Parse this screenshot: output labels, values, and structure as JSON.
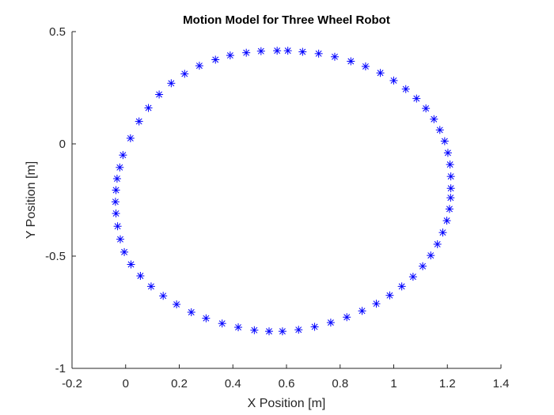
{
  "chart_data": {
    "type": "scatter",
    "title": "Motion Model for Three Wheel Robot",
    "xlabel": "X Position [m]",
    "ylabel": "Y Position [m]",
    "xlim": [
      -0.2,
      1.4
    ],
    "ylim": [
      -1,
      0.5
    ],
    "xticks": [
      -0.2,
      0,
      0.2,
      0.4,
      0.6,
      0.8,
      1,
      1.2,
      1.4
    ],
    "xtick_labels": [
      "-0.2",
      "0",
      "0.2",
      "0.4",
      "0.6",
      "0.8",
      "1",
      "1.2",
      "1.4"
    ],
    "yticks": [
      -1,
      -0.5,
      0,
      0.5
    ],
    "ytick_labels": [
      "-1",
      "-0.5",
      "0",
      "0.5"
    ],
    "grid": false,
    "marker": "asterisk",
    "color": "#0000ff",
    "series": [
      {
        "points": [
          [
            0.565,
            0.415
          ],
          [
            0.605,
            0.415
          ],
          [
            0.66,
            0.41
          ],
          [
            0.72,
            0.402
          ],
          [
            0.78,
            0.388
          ],
          [
            0.84,
            0.368
          ],
          [
            0.895,
            0.345
          ],
          [
            0.95,
            0.316
          ],
          [
            1.0,
            0.282
          ],
          [
            1.045,
            0.244
          ],
          [
            1.085,
            0.202
          ],
          [
            1.12,
            0.158
          ],
          [
            1.15,
            0.11
          ],
          [
            1.172,
            0.062
          ],
          [
            1.19,
            0.012
          ],
          [
            1.202,
            -0.04
          ],
          [
            1.21,
            -0.092
          ],
          [
            1.213,
            -0.145
          ],
          [
            1.213,
            -0.198
          ],
          [
            1.212,
            -0.24
          ],
          [
            1.208,
            -0.29
          ],
          [
            1.198,
            -0.342
          ],
          [
            1.183,
            -0.395
          ],
          [
            1.163,
            -0.447
          ],
          [
            1.138,
            -0.497
          ],
          [
            1.108,
            -0.545
          ],
          [
            1.072,
            -0.592
          ],
          [
            1.03,
            -0.635
          ],
          [
            0.985,
            -0.675
          ],
          [
            0.935,
            -0.712
          ],
          [
            0.882,
            -0.744
          ],
          [
            0.825,
            -0.772
          ],
          [
            0.765,
            -0.796
          ],
          [
            0.705,
            -0.815
          ],
          [
            0.645,
            -0.828
          ],
          [
            0.585,
            -0.835
          ],
          [
            0.535,
            -0.835
          ],
          [
            0.48,
            -0.83
          ],
          [
            0.42,
            -0.817
          ],
          [
            0.36,
            -0.8
          ],
          [
            0.3,
            -0.777
          ],
          [
            0.245,
            -0.75
          ],
          [
            0.19,
            -0.715
          ],
          [
            0.14,
            -0.677
          ],
          [
            0.095,
            -0.635
          ],
          [
            0.055,
            -0.588
          ],
          [
            0.02,
            -0.537
          ],
          [
            -0.005,
            -0.482
          ],
          [
            -0.02,
            -0.425
          ],
          [
            -0.03,
            -0.367
          ],
          [
            -0.036,
            -0.31
          ],
          [
            -0.038,
            -0.258
          ],
          [
            -0.036,
            -0.206
          ],
          [
            -0.032,
            -0.155
          ],
          [
            -0.022,
            -0.105
          ],
          [
            -0.01,
            -0.05
          ],
          [
            0.018,
            0.025
          ],
          [
            0.05,
            0.1
          ],
          [
            0.085,
            0.16
          ],
          [
            0.125,
            0.22
          ],
          [
            0.17,
            0.27
          ],
          [
            0.22,
            0.312
          ],
          [
            0.275,
            0.348
          ],
          [
            0.335,
            0.375
          ],
          [
            0.39,
            0.394
          ],
          [
            0.45,
            0.406
          ],
          [
            0.505,
            0.413
          ]
        ]
      }
    ]
  }
}
